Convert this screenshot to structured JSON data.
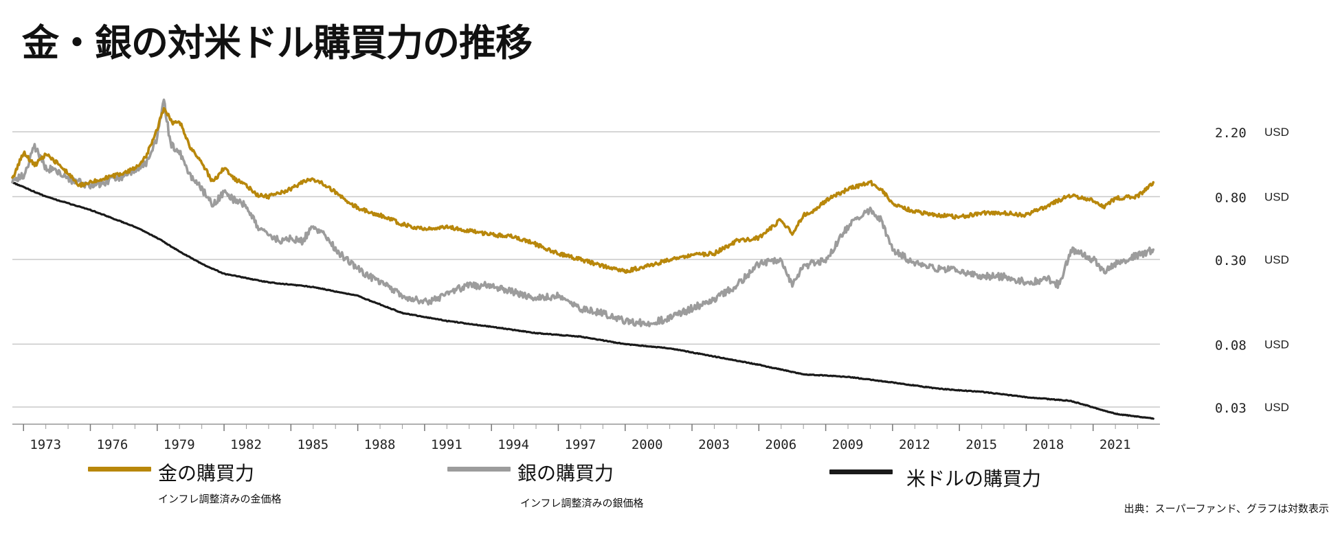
{
  "chart_data": {
    "type": "line",
    "title": "金・銀の対米ドル購買力の推移",
    "scale": "log",
    "xlim": [
      1972.5,
      2024.0
    ],
    "ylim": [
      0.022,
      3.6
    ],
    "x_ticks": [
      "1973",
      "1976",
      "1979",
      "1982",
      "1985",
      "1988",
      "1991",
      "1994",
      "1997",
      "2000",
      "2003",
      "2006",
      "2009",
      "2012",
      "2015",
      "2018",
      "2021"
    ],
    "y_ticks": [
      {
        "value": 2.2,
        "label": "2.20",
        "unit": "USD"
      },
      {
        "value": 0.8,
        "label": "0.80",
        "unit": "USD"
      },
      {
        "value": 0.3,
        "label": "0.30",
        "unit": "USD"
      },
      {
        "value": 0.08,
        "label": "0.08",
        "unit": "USD"
      },
      {
        "value": 0.03,
        "label": "0.03",
        "unit": "USD"
      }
    ],
    "series": [
      {
        "name": "金の購買力",
        "subtitle": "インフレ調整済みの金価格",
        "color": "#b8870b",
        "x": [
          1972.5,
          1973,
          1973.5,
          1974,
          1974.5,
          1975,
          1975.5,
          1976,
          1976.5,
          1977,
          1977.5,
          1978,
          1978.5,
          1979,
          1979.3,
          1979.7,
          1980,
          1980.5,
          1981,
          1981.5,
          1982,
          1982.5,
          1983,
          1983.5,
          1984,
          1984.5,
          1985,
          1985.5,
          1986,
          1986.5,
          1987,
          1987.5,
          1988,
          1988.5,
          1989,
          1990,
          1991,
          1992,
          1993,
          1994,
          1995,
          1996,
          1997,
          1998,
          1999,
          2000,
          2001,
          2002,
          2003,
          2004,
          2005,
          2006,
          2007,
          2007.5,
          2008,
          2008.5,
          2009,
          2010,
          2011,
          2011.5,
          2012,
          2013,
          2014,
          2015,
          2016,
          2017,
          2018,
          2019,
          2020,
          2021,
          2021.5,
          2022,
          2023,
          2023.7
        ],
        "values": [
          1.05,
          1.6,
          1.3,
          1.55,
          1.35,
          1.15,
          0.95,
          1.0,
          1.05,
          1.1,
          1.15,
          1.25,
          1.5,
          2.3,
          3.2,
          2.5,
          2.6,
          1.7,
          1.35,
          1.0,
          1.25,
          1.05,
          0.95,
          0.82,
          0.8,
          0.85,
          0.9,
          1.0,
          1.05,
          0.97,
          0.86,
          0.75,
          0.67,
          0.63,
          0.6,
          0.52,
          0.48,
          0.5,
          0.47,
          0.44,
          0.43,
          0.38,
          0.33,
          0.3,
          0.27,
          0.25,
          0.27,
          0.3,
          0.32,
          0.33,
          0.4,
          0.42,
          0.56,
          0.45,
          0.6,
          0.65,
          0.75,
          0.9,
          1.0,
          0.9,
          0.72,
          0.63,
          0.6,
          0.58,
          0.62,
          0.62,
          0.6,
          0.7,
          0.82,
          0.76,
          0.68,
          0.78,
          0.8,
          1.0
        ]
      },
      {
        "name": "銀の購買力",
        "subtitle": "インフレ調整済みの銀価格",
        "color": "#9c9c9c",
        "x": [
          1972.5,
          1973,
          1973.5,
          1974,
          1974.5,
          1975,
          1975.5,
          1976,
          1976.5,
          1977,
          1977.5,
          1978,
          1978.5,
          1979,
          1979.3,
          1979.6,
          1980,
          1980.5,
          1981,
          1981.5,
          1982,
          1982.5,
          1983,
          1983.5,
          1984,
          1984.5,
          1985,
          1985.5,
          1986,
          1986.5,
          1987,
          1987.5,
          1988,
          1988.5,
          1989,
          1990,
          1991,
          1991.5,
          1992,
          1993,
          1994,
          1995,
          1996,
          1997,
          1998,
          1999,
          2000,
          2001,
          2002,
          2003,
          2004,
          2005,
          2006,
          2007,
          2007.5,
          2008,
          2009,
          2010,
          2011,
          2011.5,
          2012,
          2013,
          2014,
          2015,
          2016,
          2017,
          2018,
          2019,
          2019.5,
          2020,
          2021,
          2021.5,
          2022,
          2023,
          2023.7
        ],
        "values": [
          1.05,
          1.1,
          1.75,
          1.25,
          1.2,
          1.05,
          1.0,
          0.95,
          0.98,
          1.05,
          1.1,
          1.2,
          1.35,
          2.0,
          3.6,
          1.8,
          1.6,
          1.1,
          0.9,
          0.7,
          0.85,
          0.75,
          0.7,
          0.5,
          0.45,
          0.4,
          0.42,
          0.4,
          0.5,
          0.45,
          0.35,
          0.3,
          0.26,
          0.23,
          0.21,
          0.17,
          0.155,
          0.16,
          0.18,
          0.2,
          0.2,
          0.18,
          0.165,
          0.17,
          0.14,
          0.13,
          0.115,
          0.11,
          0.12,
          0.14,
          0.16,
          0.2,
          0.28,
          0.3,
          0.2,
          0.27,
          0.3,
          0.5,
          0.65,
          0.55,
          0.35,
          0.28,
          0.26,
          0.25,
          0.23,
          0.23,
          0.21,
          0.22,
          0.2,
          0.35,
          0.3,
          0.25,
          0.28,
          0.32,
          0.35
        ]
      },
      {
        "name": "米ドルの購買力",
        "subtitle": "",
        "color": "#1a1a1a",
        "x": [
          1972.5,
          1974,
          1976,
          1978,
          1979,
          1980,
          1981,
          1982,
          1984,
          1986,
          1988,
          1990,
          1992,
          1994,
          1996,
          1998,
          2000,
          2002,
          2004,
          2006,
          2008,
          2010,
          2012,
          2014,
          2016,
          2018,
          2020,
          2022,
          2023.7
        ],
        "values": [
          1.0,
          0.8,
          0.65,
          0.5,
          0.42,
          0.34,
          0.28,
          0.24,
          0.21,
          0.195,
          0.17,
          0.13,
          0.115,
          0.105,
          0.095,
          0.09,
          0.08,
          0.075,
          0.066,
          0.058,
          0.05,
          0.048,
          0.044,
          0.04,
          0.038,
          0.035,
          0.033,
          0.027,
          0.025
        ]
      }
    ]
  },
  "source_note": "出典：スーパーファンド、グラフは対数表示"
}
